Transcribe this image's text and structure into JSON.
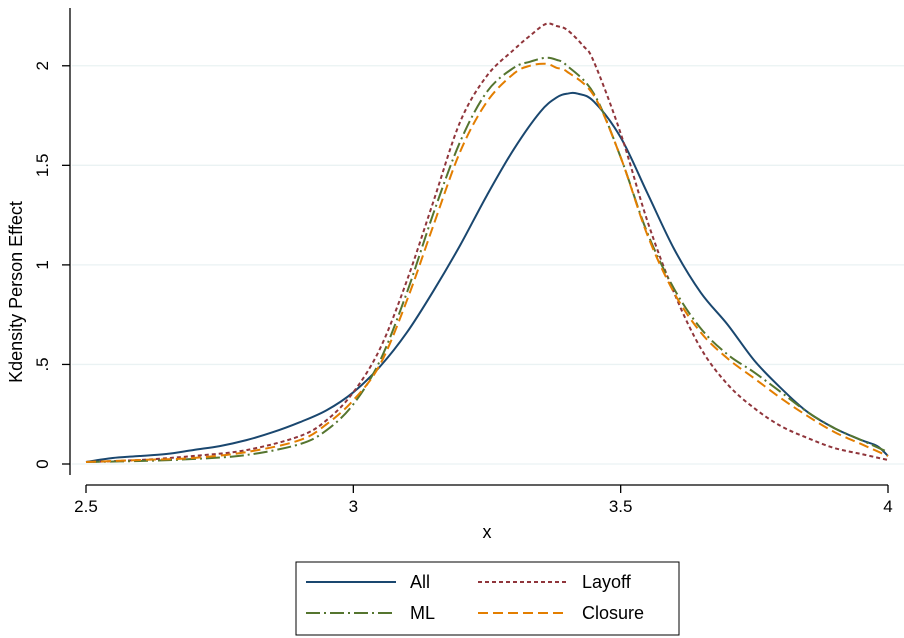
{
  "chart_data": {
    "type": "line",
    "title": "",
    "xlabel": "x",
    "ylabel": "Kdensity Person Effect",
    "xlim": [
      2.5,
      4.0
    ],
    "ylim": [
      0,
      2.25
    ],
    "xticks": [
      2.5,
      3.0,
      3.5,
      4.0
    ],
    "xtick_labels": [
      "2.5",
      "3",
      "3.5",
      "4"
    ],
    "yticks": [
      0,
      0.5,
      1.0,
      1.5,
      2.0
    ],
    "ytick_labels": [
      "0",
      ".5",
      "1",
      "1.5",
      "2"
    ],
    "grid": "horizontal",
    "legend": "bottom",
    "series": [
      {
        "name": "All",
        "color": "#1a476f",
        "dash": "solid",
        "x": [
          2.5,
          2.55,
          2.6,
          2.65,
          2.7,
          2.75,
          2.8,
          2.85,
          2.9,
          2.95,
          3.0,
          3.05,
          3.1,
          3.15,
          3.2,
          3.25,
          3.3,
          3.35,
          3.38,
          3.4,
          3.42,
          3.45,
          3.5,
          3.55,
          3.6,
          3.65,
          3.7,
          3.75,
          3.8,
          3.85,
          3.9,
          3.95,
          3.98,
          4.0
        ],
        "y": [
          0.01,
          0.03,
          0.04,
          0.05,
          0.07,
          0.09,
          0.12,
          0.16,
          0.21,
          0.27,
          0.36,
          0.49,
          0.66,
          0.87,
          1.1,
          1.35,
          1.58,
          1.77,
          1.84,
          1.86,
          1.86,
          1.82,
          1.64,
          1.36,
          1.08,
          0.86,
          0.7,
          0.52,
          0.38,
          0.26,
          0.18,
          0.12,
          0.09,
          0.04
        ]
      },
      {
        "name": "Layoff",
        "color": "#90353b",
        "dash": "short-dash",
        "x": [
          2.5,
          2.6,
          2.7,
          2.8,
          2.9,
          2.95,
          3.0,
          3.05,
          3.1,
          3.15,
          3.2,
          3.25,
          3.3,
          3.33,
          3.36,
          3.38,
          3.4,
          3.43,
          3.45,
          3.5,
          3.55,
          3.6,
          3.65,
          3.7,
          3.75,
          3.8,
          3.85,
          3.9,
          3.95,
          4.0
        ],
        "y": [
          0.01,
          0.02,
          0.04,
          0.07,
          0.14,
          0.22,
          0.36,
          0.58,
          0.92,
          1.32,
          1.72,
          1.95,
          2.08,
          2.15,
          2.21,
          2.2,
          2.18,
          2.1,
          2.02,
          1.66,
          1.22,
          0.86,
          0.58,
          0.4,
          0.28,
          0.19,
          0.13,
          0.08,
          0.05,
          0.02
        ]
      },
      {
        "name": "ML",
        "color": "#55752f",
        "dash": "long-dash-dot",
        "x": [
          2.5,
          2.6,
          2.7,
          2.8,
          2.9,
          2.95,
          3.0,
          3.05,
          3.1,
          3.15,
          3.2,
          3.25,
          3.3,
          3.33,
          3.36,
          3.38,
          3.4,
          3.45,
          3.5,
          3.55,
          3.6,
          3.65,
          3.7,
          3.75,
          3.8,
          3.85,
          3.9,
          3.95,
          4.0
        ],
        "y": [
          0.01,
          0.015,
          0.025,
          0.045,
          0.1,
          0.17,
          0.3,
          0.52,
          0.86,
          1.26,
          1.62,
          1.87,
          1.99,
          2.02,
          2.04,
          2.03,
          2.0,
          1.86,
          1.54,
          1.16,
          0.88,
          0.68,
          0.55,
          0.46,
          0.36,
          0.26,
          0.18,
          0.12,
          0.06
        ]
      },
      {
        "name": "Closure",
        "color": "#e37e00",
        "dash": "dash",
        "x": [
          2.5,
          2.6,
          2.7,
          2.8,
          2.9,
          2.95,
          3.0,
          3.05,
          3.1,
          3.15,
          3.2,
          3.25,
          3.3,
          3.33,
          3.36,
          3.38,
          3.4,
          3.45,
          3.5,
          3.55,
          3.6,
          3.65,
          3.7,
          3.75,
          3.8,
          3.85,
          3.9,
          3.95,
          4.0
        ],
        "y": [
          0.01,
          0.02,
          0.03,
          0.06,
          0.12,
          0.2,
          0.32,
          0.5,
          0.82,
          1.2,
          1.57,
          1.82,
          1.96,
          2.0,
          2.01,
          1.99,
          1.97,
          1.85,
          1.54,
          1.15,
          0.86,
          0.66,
          0.53,
          0.43,
          0.33,
          0.24,
          0.16,
          0.1,
          0.04
        ]
      }
    ]
  }
}
